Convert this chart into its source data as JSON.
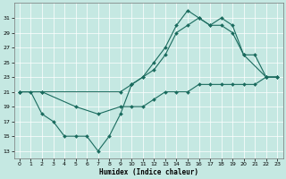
{
  "bg_color": "#c5e8e2",
  "line_color": "#1a6b5e",
  "xlabel": "Humidex (Indice chaleur)",
  "xlim": [
    -0.5,
    23.5
  ],
  "ylim": [
    12.0,
    33.0
  ],
  "yticks": [
    13,
    15,
    17,
    19,
    21,
    23,
    25,
    27,
    29,
    31
  ],
  "xticks": [
    0,
    1,
    2,
    3,
    4,
    5,
    6,
    7,
    8,
    9,
    10,
    11,
    12,
    13,
    14,
    15,
    16,
    17,
    18,
    19,
    20,
    21,
    22,
    23
  ],
  "line1_x": [
    0,
    1,
    2,
    3,
    4,
    5,
    6,
    7,
    8,
    9,
    10,
    11,
    12,
    13,
    14,
    15,
    16,
    17,
    18,
    19,
    20,
    21,
    22,
    23
  ],
  "line1_y": [
    21,
    21,
    18,
    17,
    15,
    15,
    15,
    13,
    15,
    18,
    22,
    23,
    25,
    27,
    30,
    32,
    31,
    30,
    31,
    30,
    26,
    26,
    23,
    23
  ],
  "line2_x": [
    0,
    2,
    9,
    10,
    11,
    12,
    13,
    14,
    15,
    16,
    17,
    18,
    19,
    20,
    22,
    23
  ],
  "line2_y": [
    21,
    21,
    21,
    22,
    23,
    24,
    26,
    29,
    30,
    31,
    30,
    30,
    29,
    26,
    23,
    23
  ],
  "line3_x": [
    0,
    2,
    5,
    7,
    9,
    10,
    11,
    12,
    13,
    14,
    15,
    16,
    17,
    18,
    19,
    20,
    21,
    22,
    23
  ],
  "line3_y": [
    21,
    21,
    19,
    18,
    19,
    19,
    19,
    20,
    21,
    21,
    21,
    22,
    22,
    22,
    22,
    22,
    22,
    23,
    23
  ]
}
